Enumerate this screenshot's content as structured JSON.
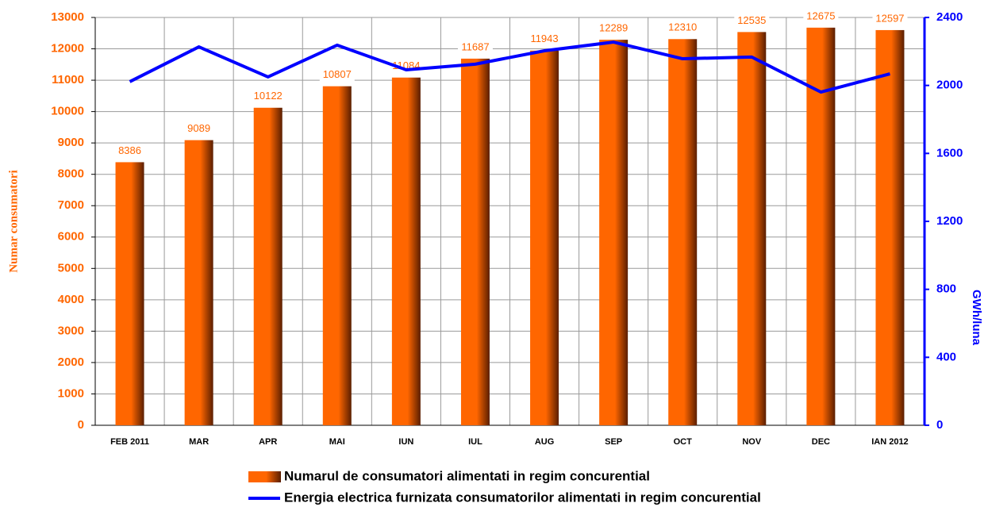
{
  "chart_data": {
    "type": "bar",
    "y_label": "Numar consumatori",
    "y2_label": "GWh/luna",
    "categories": [
      "FEB 2011",
      "MAR",
      "APR",
      "MAI",
      "IUN",
      "IUL",
      "AUG",
      "SEP",
      "OCT",
      "NOV",
      "DEC",
      "IAN 2012"
    ],
    "series": [
      {
        "name": "Numarul de consumatori alimentati in regim concurential",
        "type": "bar",
        "color": "#ff6600",
        "values": [
          8386,
          9089,
          10122,
          10807,
          11084,
          11687,
          11943,
          12289,
          12310,
          12535,
          12675,
          12597
        ]
      },
      {
        "name": "Energia electrica furnizata consumatorilor alimentati in regim concurential",
        "type": "line",
        "axis": "y2",
        "color": "#0000ff",
        "values": [
          2022,
          2227,
          2050,
          2237,
          2092,
          2125,
          2204,
          2255,
          2157,
          2167,
          1961,
          2068
        ]
      }
    ],
    "ylim": [
      0,
      13000
    ],
    "yticks": [
      0,
      1000,
      2000,
      3000,
      4000,
      5000,
      6000,
      7000,
      8000,
      9000,
      10000,
      11000,
      12000,
      13000
    ],
    "y2lim": [
      0,
      2400
    ],
    "y2ticks": [
      0,
      400,
      800,
      1200,
      1600,
      2000,
      2400
    ],
    "grid": true
  }
}
